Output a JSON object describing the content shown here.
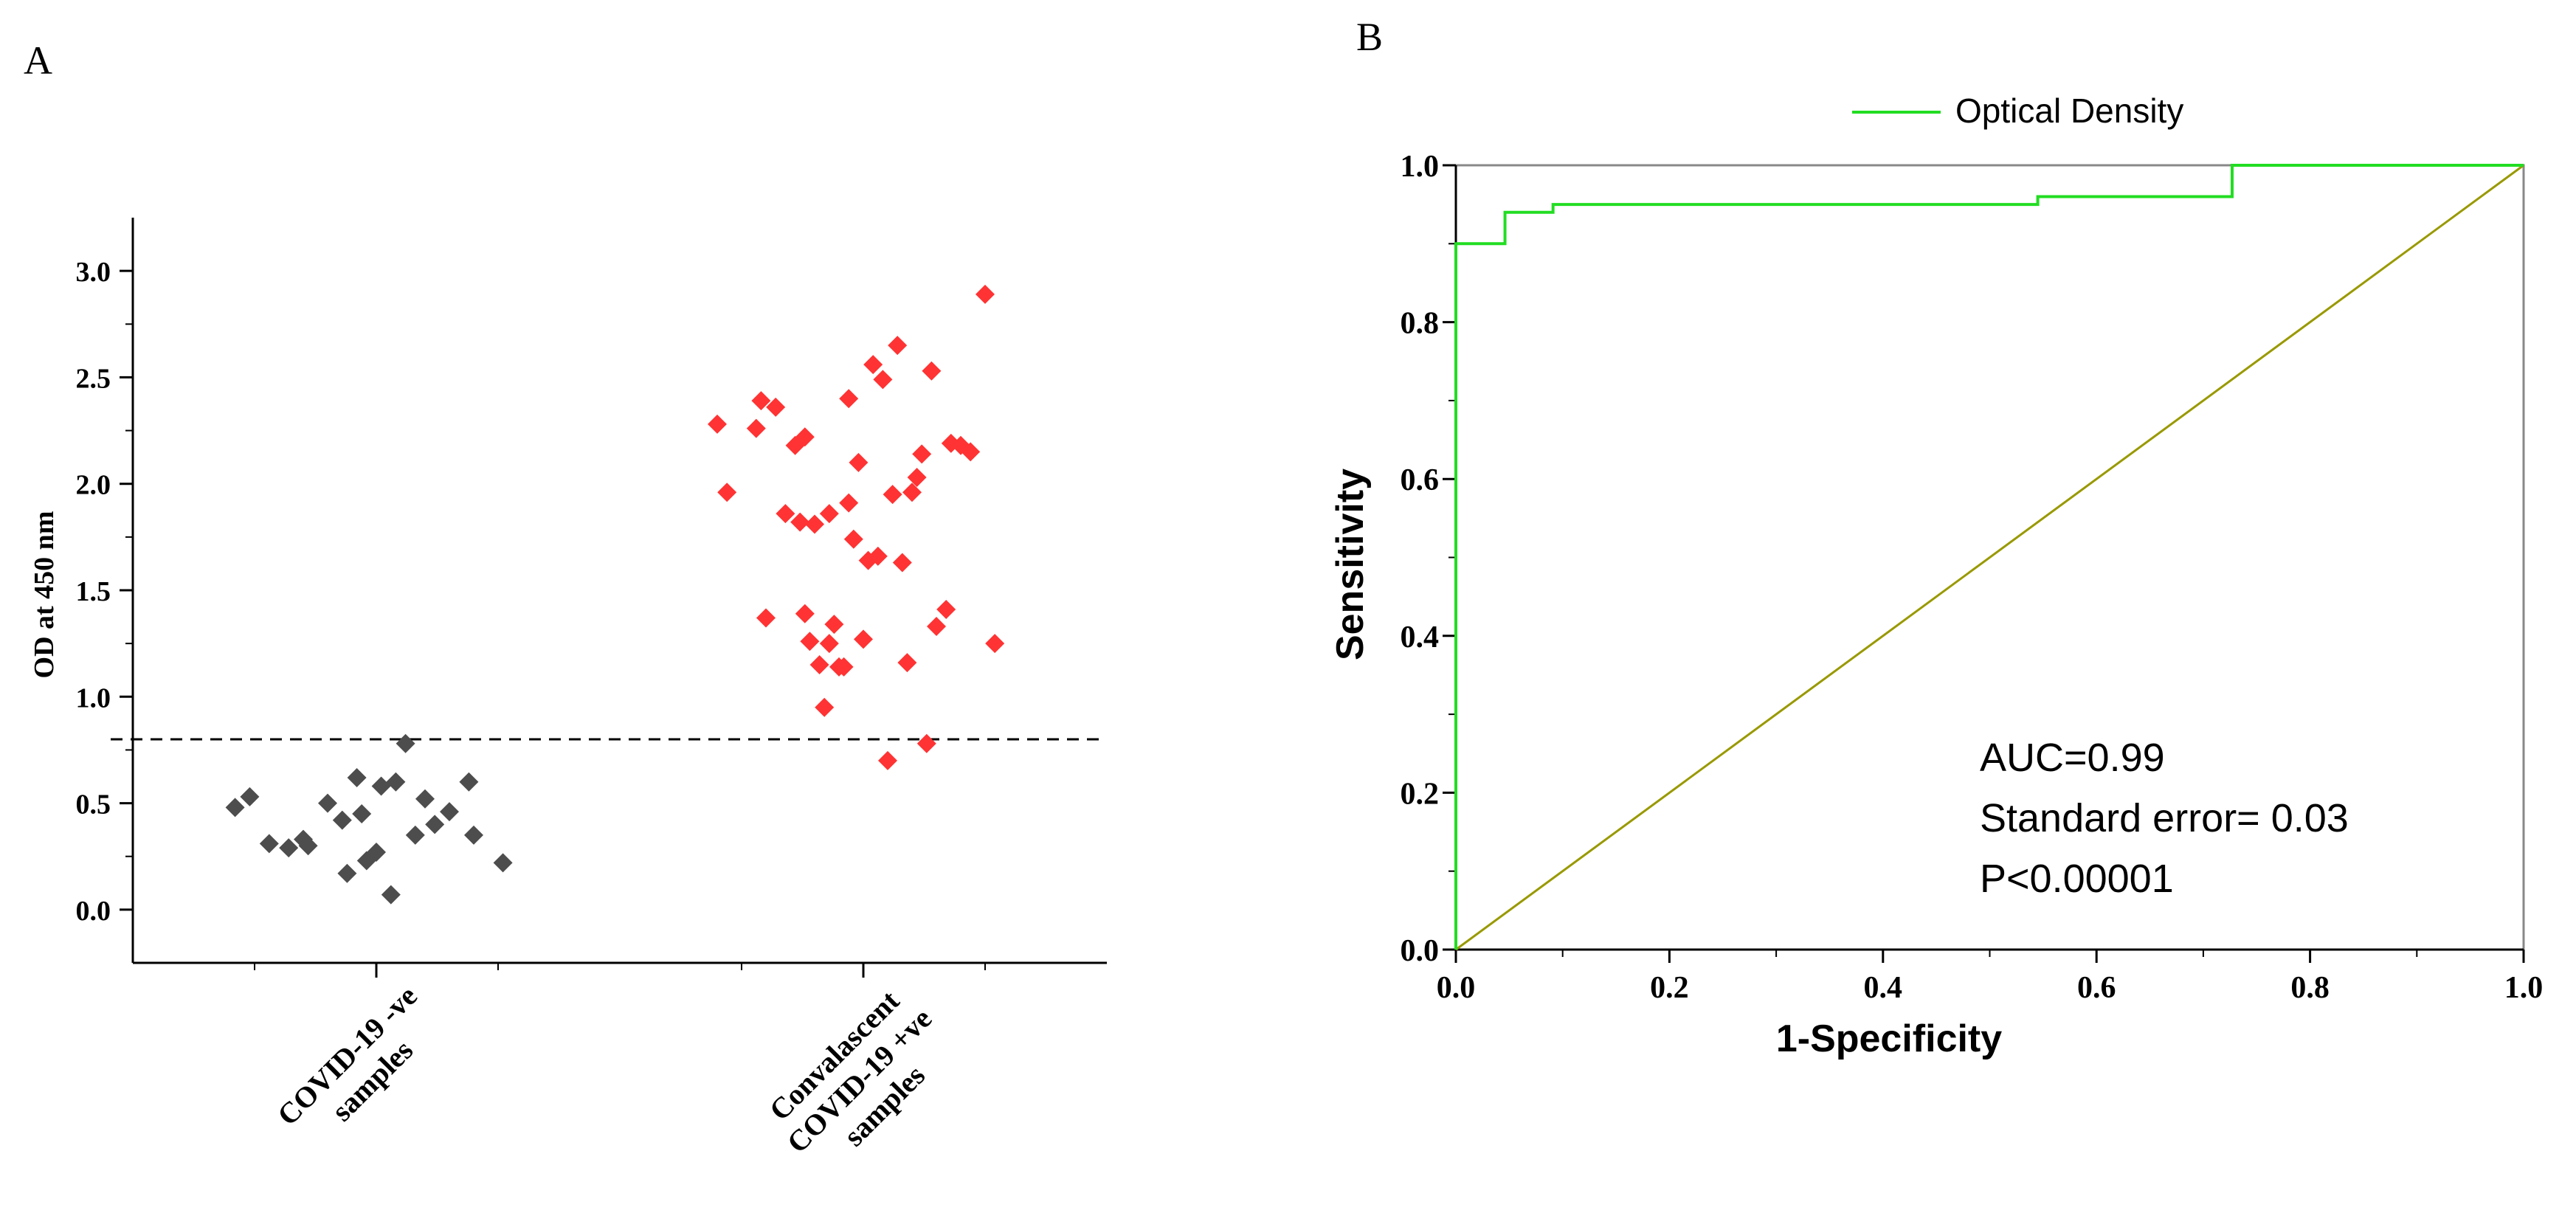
{
  "panel_a": {
    "label": "A",
    "chart_data": {
      "type": "scatter",
      "ylabel": "OD at 450 nm",
      "ylim": [
        -0.25,
        3.25
      ],
      "yticks": [
        "0.0",
        "0.5",
        "1.0",
        "1.5",
        "2.0",
        "2.5",
        "3.0"
      ],
      "cutoff": 0.8,
      "groups": [
        {
          "name": "COVID-19 -ve samples",
          "label_lines": [
            "COVID-19 -ve",
            "samples"
          ],
          "color": "#4d4d4d",
          "x": [
            0.71,
            0.74,
            0.85,
            0.86,
            0.9,
            0.94,
            0.96,
            0.97,
            0.98,
            1.0,
            1.01,
            1.03,
            1.04,
            1.06,
            1.08,
            1.12,
            1.15,
            1.19,
            1.2,
            1.26,
            0.78,
            0.82,
            0.93,
            1.1
          ],
          "values": [
            0.48,
            0.53,
            0.33,
            0.3,
            0.5,
            0.17,
            0.62,
            0.45,
            0.23,
            0.27,
            0.58,
            0.07,
            0.6,
            0.78,
            0.35,
            0.4,
            0.46,
            0.6,
            0.35,
            0.22,
            0.31,
            0.29,
            0.42,
            0.52
          ]
        },
        {
          "name": "Convalascent COVID-19 +ve samples",
          "label_lines": [
            "Convalascent",
            "COVID-19 +ve",
            "samples"
          ],
          "color": "#ff3333",
          "x": [
            1.7,
            1.72,
            1.78,
            1.79,
            1.8,
            1.82,
            1.84,
            1.86,
            1.88,
            1.88,
            1.89,
            1.9,
            1.91,
            1.92,
            1.93,
            1.93,
            1.94,
            1.95,
            1.96,
            1.97,
            1.97,
            1.98,
            1.99,
            2.0,
            2.01,
            2.02,
            2.03,
            2.04,
            2.06,
            2.07,
            2.09,
            2.1,
            2.11,
            2.12,
            2.13,
            2.14,
            2.15,
            2.17,
            2.18,
            2.2,
            2.22,
            2.25,
            2.27,
            2.05,
            1.87,
            2.08
          ],
          "values": [
            2.28,
            1.96,
            2.26,
            2.39,
            1.37,
            2.36,
            1.86,
            2.18,
            1.39,
            2.22,
            1.26,
            1.81,
            1.15,
            0.95,
            1.25,
            1.86,
            1.34,
            1.14,
            1.14,
            2.4,
            1.91,
            1.74,
            2.1,
            1.27,
            1.64,
            2.56,
            1.66,
            2.49,
            1.95,
            2.65,
            1.16,
            1.96,
            2.03,
            2.14,
            0.78,
            2.53,
            1.33,
            1.41,
            2.19,
            2.18,
            2.15,
            2.89,
            1.25,
            0.7,
            1.82,
            1.63
          ]
        }
      ]
    }
  },
  "panel_b": {
    "label": "B",
    "chart_data": {
      "type": "line",
      "xlabel": "1-Specificity",
      "ylabel": "Sensitivity",
      "xlim": [
        0,
        1
      ],
      "ylim": [
        0,
        1
      ],
      "xticks": [
        "0.0",
        "0.2",
        "0.4",
        "0.6",
        "0.8",
        "1.0"
      ],
      "yticks": [
        "0.0",
        "0.2",
        "0.4",
        "0.6",
        "0.8",
        "1.0"
      ],
      "legend": "top",
      "series": [
        {
          "name": "Optical Density",
          "color": "#22dd22",
          "x": [
            0,
            0,
            0.046,
            0.046,
            0.091,
            0.091,
            0.545,
            0.545,
            0.727,
            0.727,
            1.0
          ],
          "y": [
            0,
            0.9,
            0.9,
            0.94,
            0.94,
            0.95,
            0.95,
            0.96,
            0.96,
            1.0,
            1.0
          ]
        },
        {
          "name": "reference",
          "color": "#999900",
          "x": [
            0,
            1
          ],
          "y": [
            0,
            1
          ]
        }
      ],
      "annotations": [
        "AUC=0.99",
        "Standard error= 0.03",
        "P<0.00001"
      ]
    }
  }
}
